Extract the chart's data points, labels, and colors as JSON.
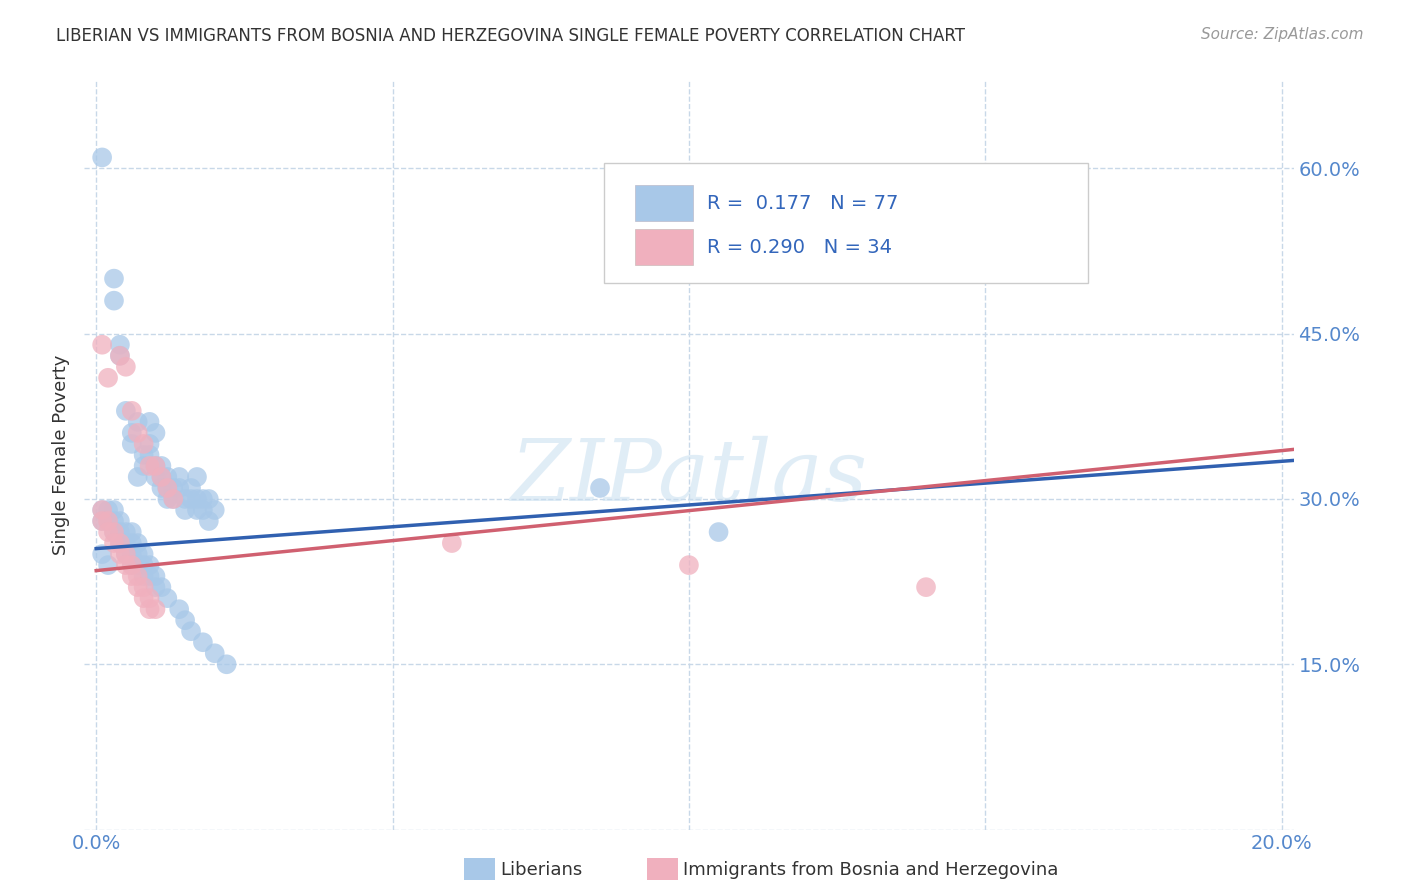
{
  "title": "LIBERIAN VS IMMIGRANTS FROM BOSNIA AND HERZEGOVINA SINGLE FEMALE POVERTY CORRELATION CHART",
  "source": "Source: ZipAtlas.com",
  "ylabel": "Single Female Poverty",
  "xlim": [
    -0.002,
    0.202
  ],
  "ylim": [
    0.0,
    0.68
  ],
  "xticks": [
    0.0,
    0.05,
    0.1,
    0.15,
    0.2
  ],
  "xticklabels": [
    "0.0%",
    "",
    "",
    "",
    "20.0%"
  ],
  "yticks": [
    0.0,
    0.15,
    0.3,
    0.45,
    0.6
  ],
  "yticklabels": [
    "",
    "15.0%",
    "30.0%",
    "45.0%",
    "60.0%"
  ],
  "blue_color": "#a8c8e8",
  "pink_color": "#f0b0be",
  "blue_line_color": "#3060b0",
  "pink_line_color": "#d06070",
  "grid_color": "#c8d8e8",
  "legend_label1": "Liberians",
  "legend_label2": "Immigrants from Bosnia and Herzegovina",
  "blue_scatter": [
    [
      0.001,
      0.61
    ],
    [
      0.003,
      0.5
    ],
    [
      0.003,
      0.48
    ],
    [
      0.004,
      0.44
    ],
    [
      0.004,
      0.43
    ],
    [
      0.005,
      0.38
    ],
    [
      0.006,
      0.36
    ],
    [
      0.006,
      0.35
    ],
    [
      0.007,
      0.37
    ],
    [
      0.007,
      0.32
    ],
    [
      0.008,
      0.34
    ],
    [
      0.008,
      0.33
    ],
    [
      0.009,
      0.37
    ],
    [
      0.009,
      0.35
    ],
    [
      0.009,
      0.34
    ],
    [
      0.01,
      0.36
    ],
    [
      0.01,
      0.33
    ],
    [
      0.01,
      0.32
    ],
    [
      0.011,
      0.33
    ],
    [
      0.011,
      0.32
    ],
    [
      0.011,
      0.31
    ],
    [
      0.012,
      0.32
    ],
    [
      0.012,
      0.31
    ],
    [
      0.012,
      0.3
    ],
    [
      0.013,
      0.31
    ],
    [
      0.013,
      0.3
    ],
    [
      0.014,
      0.32
    ],
    [
      0.014,
      0.31
    ],
    [
      0.015,
      0.3
    ],
    [
      0.015,
      0.29
    ],
    [
      0.016,
      0.31
    ],
    [
      0.016,
      0.3
    ],
    [
      0.017,
      0.32
    ],
    [
      0.017,
      0.3
    ],
    [
      0.017,
      0.29
    ],
    [
      0.018,
      0.3
    ],
    [
      0.018,
      0.29
    ],
    [
      0.019,
      0.3
    ],
    [
      0.019,
      0.28
    ],
    [
      0.02,
      0.29
    ],
    [
      0.001,
      0.29
    ],
    [
      0.001,
      0.28
    ],
    [
      0.002,
      0.29
    ],
    [
      0.002,
      0.28
    ],
    [
      0.003,
      0.29
    ],
    [
      0.003,
      0.28
    ],
    [
      0.003,
      0.27
    ],
    [
      0.004,
      0.28
    ],
    [
      0.004,
      0.27
    ],
    [
      0.004,
      0.26
    ],
    [
      0.005,
      0.27
    ],
    [
      0.005,
      0.26
    ],
    [
      0.005,
      0.25
    ],
    [
      0.006,
      0.27
    ],
    [
      0.006,
      0.26
    ],
    [
      0.006,
      0.25
    ],
    [
      0.006,
      0.24
    ],
    [
      0.007,
      0.26
    ],
    [
      0.007,
      0.25
    ],
    [
      0.007,
      0.24
    ],
    [
      0.008,
      0.25
    ],
    [
      0.008,
      0.24
    ],
    [
      0.008,
      0.23
    ],
    [
      0.009,
      0.24
    ],
    [
      0.009,
      0.23
    ],
    [
      0.01,
      0.23
    ],
    [
      0.01,
      0.22
    ],
    [
      0.011,
      0.22
    ],
    [
      0.012,
      0.21
    ],
    [
      0.014,
      0.2
    ],
    [
      0.015,
      0.19
    ],
    [
      0.016,
      0.18
    ],
    [
      0.018,
      0.17
    ],
    [
      0.02,
      0.16
    ],
    [
      0.022,
      0.15
    ],
    [
      0.085,
      0.31
    ],
    [
      0.105,
      0.27
    ],
    [
      0.001,
      0.25
    ],
    [
      0.002,
      0.24
    ]
  ],
  "pink_scatter": [
    [
      0.001,
      0.44
    ],
    [
      0.002,
      0.41
    ],
    [
      0.004,
      0.43
    ],
    [
      0.005,
      0.42
    ],
    [
      0.006,
      0.38
    ],
    [
      0.007,
      0.36
    ],
    [
      0.008,
      0.35
    ],
    [
      0.009,
      0.33
    ],
    [
      0.01,
      0.33
    ],
    [
      0.011,
      0.32
    ],
    [
      0.012,
      0.31
    ],
    [
      0.013,
      0.3
    ],
    [
      0.001,
      0.29
    ],
    [
      0.001,
      0.28
    ],
    [
      0.002,
      0.28
    ],
    [
      0.002,
      0.27
    ],
    [
      0.003,
      0.27
    ],
    [
      0.003,
      0.26
    ],
    [
      0.004,
      0.26
    ],
    [
      0.004,
      0.25
    ],
    [
      0.005,
      0.25
    ],
    [
      0.005,
      0.24
    ],
    [
      0.006,
      0.24
    ],
    [
      0.006,
      0.23
    ],
    [
      0.007,
      0.23
    ],
    [
      0.007,
      0.22
    ],
    [
      0.008,
      0.22
    ],
    [
      0.008,
      0.21
    ],
    [
      0.009,
      0.21
    ],
    [
      0.009,
      0.2
    ],
    [
      0.01,
      0.2
    ],
    [
      0.06,
      0.26
    ],
    [
      0.1,
      0.24
    ],
    [
      0.14,
      0.22
    ]
  ],
  "blue_line_x": [
    0.0,
    0.202
  ],
  "blue_line_y": [
    0.255,
    0.335
  ],
  "pink_line_x": [
    0.0,
    0.202
  ],
  "pink_line_y": [
    0.235,
    0.345
  ]
}
